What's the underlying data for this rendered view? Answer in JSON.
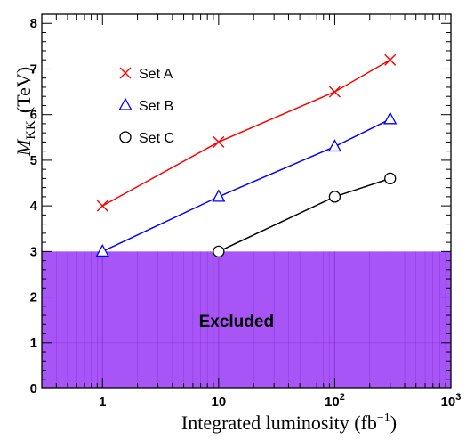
{
  "chart_data": {
    "type": "line",
    "xlabel": "Integrated luminosity (fb",
    "xlabel_sup": "−1",
    "xlabel_close": ")",
    "ylabel_main": "M",
    "ylabel_sub": "KK",
    "ylabel_unit": "(TeV)",
    "x_scale": "log",
    "xlim": [
      0.3,
      1000
    ],
    "ylim": [
      0,
      8.2
    ],
    "x_ticks": [
      {
        "value": 1,
        "label": "1"
      },
      {
        "value": 10,
        "label": "10"
      },
      {
        "value": 100,
        "base": "10",
        "exp": "2"
      },
      {
        "value": 1000,
        "base": "10",
        "exp": "3"
      }
    ],
    "y_ticks": [
      0,
      1,
      2,
      3,
      4,
      5,
      6,
      7,
      8
    ],
    "grid": false,
    "legend_placement": "top-left",
    "excluded_region": {
      "label": "Excluded",
      "y_max": 3,
      "color": "#a855f7"
    },
    "series": [
      {
        "name": "Set A",
        "marker": "x",
        "color": "#ff0000",
        "x": [
          1,
          10,
          100,
          300
        ],
        "y": [
          4.0,
          5.4,
          6.5,
          7.2
        ]
      },
      {
        "name": "Set B",
        "marker": "triangle",
        "color": "#0000ff",
        "x": [
          1,
          10,
          100,
          300
        ],
        "y": [
          3.0,
          4.2,
          5.3,
          5.9
        ]
      },
      {
        "name": "Set C",
        "marker": "circle",
        "color": "#000000",
        "x": [
          10,
          100,
          300
        ],
        "y": [
          3.0,
          4.2,
          4.6
        ]
      }
    ]
  }
}
